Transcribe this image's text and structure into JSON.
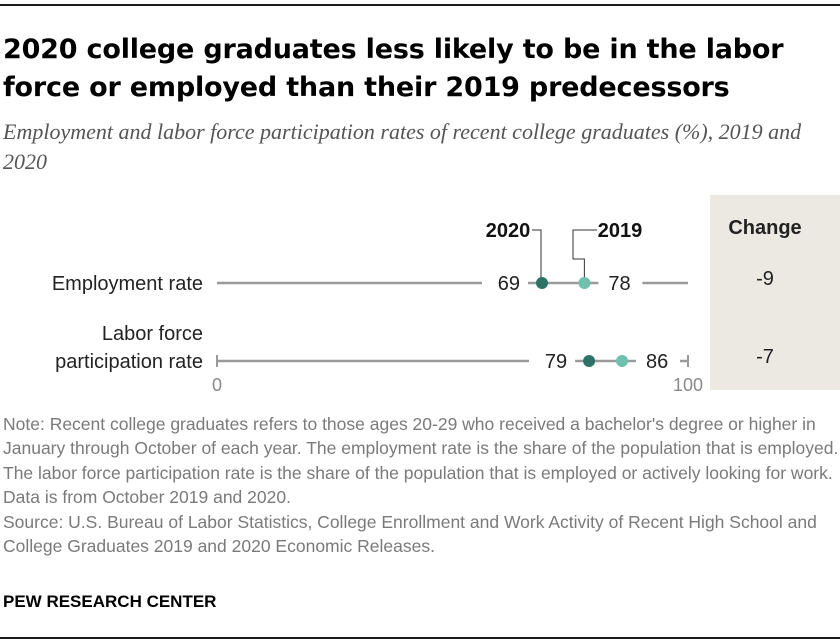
{
  "title": "2020 college graduates less likely to be in the labor force or employed than their 2019 predecessors",
  "subtitle": "Employment and labor force participation rates of recent college graduates (%), 2019 and 2020",
  "chart_data": {
    "type": "dot",
    "x_range": [
      0,
      100
    ],
    "x_ticks": [
      "0",
      "100"
    ],
    "legend": [
      "2020",
      "2019"
    ],
    "change_header": "Change",
    "categories": [
      "Employment rate",
      "Labor force participation rate"
    ],
    "category_lines": [
      [
        "Employment rate"
      ],
      [
        "Labor force",
        "participation rate"
      ]
    ],
    "series": [
      {
        "name": "2020",
        "values": [
          69,
          79
        ],
        "color": "#2e7265"
      },
      {
        "name": "2019",
        "values": [
          78,
          86
        ],
        "color": "#6fc0ad"
      }
    ],
    "change": [
      "-9",
      "-7"
    ],
    "axis_color": "#9a9a9a",
    "change_bg": "#ece9e2"
  },
  "notes": [
    "Note: Recent college graduates refers to those ages 20-29 who received a bachelor's degree or higher in January through October of each year. The employment rate is the share of the population that is employed. The labor force participation rate is the share of the population that is employed or actively looking for work. Data is from October 2019 and 2020.",
    "Source: U.S. Bureau of Labor Statistics, College Enrollment and Work Activity of Recent High School and College Graduates 2019 and 2020 Economic Releases."
  ],
  "brand": "PEW RESEARCH CENTER"
}
